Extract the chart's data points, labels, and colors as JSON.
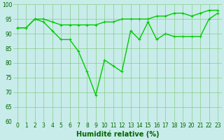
{
  "x": [
    0,
    1,
    2,
    3,
    4,
    5,
    6,
    7,
    8,
    9,
    10,
    11,
    12,
    13,
    14,
    15,
    16,
    17,
    18,
    19,
    20,
    21,
    22,
    23
  ],
  "line1": [
    92,
    92,
    95,
    95,
    94,
    93,
    93,
    93,
    93,
    93,
    94,
    94,
    95,
    95,
    95,
    95,
    96,
    96,
    97,
    97,
    96,
    97,
    98,
    98
  ],
  "line2": [
    92,
    92,
    95,
    94,
    91,
    88,
    88,
    84,
    77,
    69,
    81,
    79,
    77,
    91,
    88,
    94,
    88,
    90,
    89,
    89,
    89,
    89,
    95,
    97
  ],
  "xlabel": "Humidité relative (%)",
  "ylim": [
    60,
    100
  ],
  "xlim": [
    -0.5,
    23.5
  ],
  "yticks": [
    60,
    65,
    70,
    75,
    80,
    85,
    90,
    95,
    100
  ],
  "xticks": [
    0,
    1,
    2,
    3,
    4,
    5,
    6,
    7,
    8,
    9,
    10,
    11,
    12,
    13,
    14,
    15,
    16,
    17,
    18,
    19,
    20,
    21,
    22,
    23
  ],
  "line_color": "#00cc00",
  "bg_color": "#c8ecea",
  "grid_color": "#88cc88",
  "tick_label_color": "#006600",
  "xlabel_color": "#006600",
  "xlabel_fontsize": 7,
  "tick_fontsize": 5.5,
  "linewidth": 1.0,
  "markersize": 3.0
}
